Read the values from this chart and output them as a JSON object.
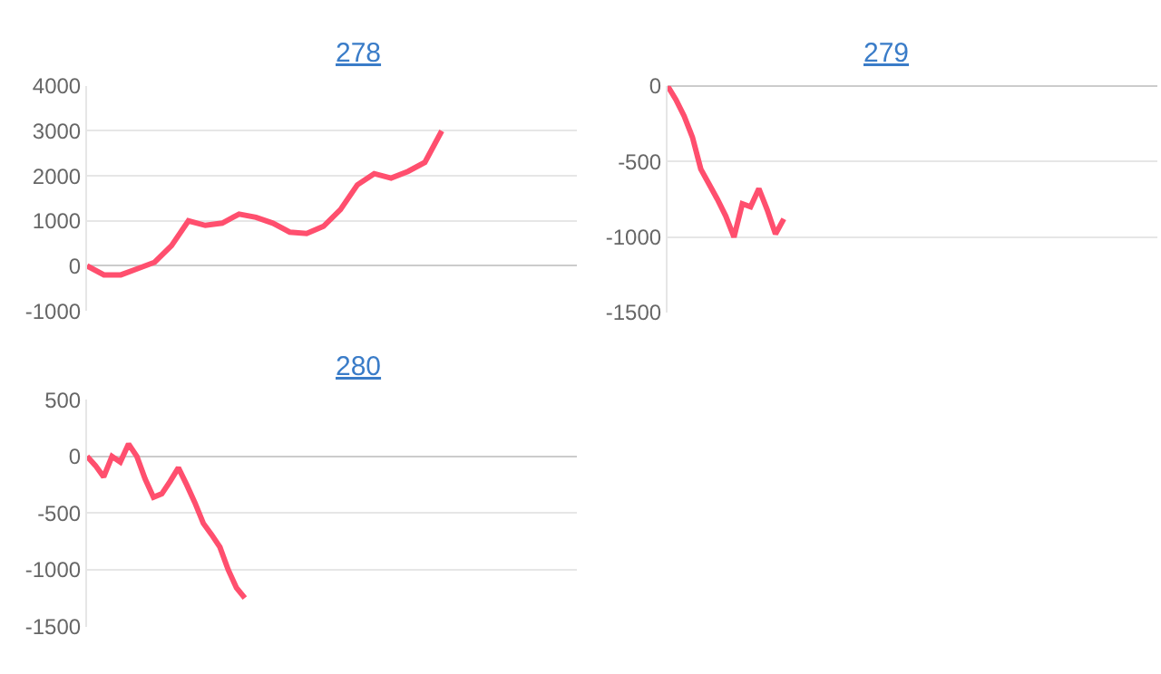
{
  "chart_data": [
    {
      "type": "line",
      "title": "278",
      "categories": [
        null,
        null,
        null,
        null,
        null,
        null,
        null,
        null,
        null,
        null,
        null,
        null,
        null,
        null,
        null,
        null,
        null,
        null,
        null,
        null,
        null,
        null,
        null,
        null,
        null,
        null,
        null,
        null,
        null,
        null
      ],
      "values": [
        0,
        -200,
        -200,
        -60,
        80,
        450,
        1000,
        900,
        950,
        1150,
        1080,
        950,
        750,
        720,
        880,
        1250,
        1800,
        2050,
        1950,
        2100,
        2300,
        3000,
        null,
        null,
        null,
        null,
        null,
        null,
        null,
        null
      ],
      "color": "#ff4f6e",
      "ylim": [
        -1000,
        4000
      ],
      "yticks": [
        -1000,
        0,
        1000,
        2000,
        3000,
        4000
      ],
      "grid": "y",
      "tick_labels": "y"
    },
    {
      "type": "line",
      "title": "279",
      "categories": [
        null,
        null,
        null,
        null,
        null,
        null,
        null,
        null,
        null,
        null,
        null,
        null,
        null,
        null,
        null,
        null,
        null,
        null,
        null,
        null,
        null,
        null,
        null,
        null,
        null,
        null,
        null,
        null,
        null,
        null,
        null,
        null,
        null,
        null,
        null,
        null,
        null,
        null,
        null,
        null,
        null,
        null,
        null,
        null,
        null,
        null,
        null,
        null,
        null,
        null,
        null,
        null,
        null,
        null,
        null,
        null,
        null,
        null,
        null,
        null
      ],
      "values": [
        0,
        -90,
        -200,
        -340,
        -550,
        -650,
        -750,
        -860,
        -1000,
        -780,
        -800,
        -680,
        -820,
        -980,
        -880,
        null,
        null,
        null,
        null,
        null,
        null,
        null,
        null,
        null,
        null,
        null,
        null,
        null,
        null,
        null,
        null,
        null,
        null,
        null,
        null,
        null,
        null,
        null,
        null,
        null,
        null,
        null,
        null,
        null,
        null,
        null,
        null,
        null,
        null,
        null,
        null,
        null,
        null,
        null,
        null,
        null,
        null,
        null,
        null,
        null
      ],
      "color": "#ff4f6e",
      "ylim": [
        -1500,
        0
      ],
      "yticks": [
        -1500,
        -1000,
        -500,
        0
      ],
      "grid": "y",
      "tick_labels": "y"
    },
    {
      "type": "line",
      "title": "280",
      "categories": [
        null,
        null,
        null,
        null,
        null,
        null,
        null,
        null,
        null,
        null,
        null,
        null,
        null,
        null,
        null,
        null,
        null,
        null,
        null,
        null,
        null,
        null,
        null,
        null,
        null,
        null,
        null,
        null,
        null,
        null,
        null,
        null,
        null,
        null,
        null,
        null,
        null,
        null,
        null,
        null,
        null,
        null,
        null,
        null,
        null,
        null,
        null,
        null,
        null,
        null,
        null,
        null,
        null,
        null,
        null,
        null,
        null,
        null,
        null,
        null
      ],
      "values": [
        0,
        -80,
        -180,
        0,
        -50,
        110,
        0,
        -200,
        -360,
        -330,
        -220,
        -100,
        -250,
        -410,
        -590,
        -690,
        -800,
        -1000,
        -1160,
        -1250,
        null,
        null,
        null,
        null,
        null,
        null,
        null,
        null,
        null,
        null,
        null,
        null,
        null,
        null,
        null,
        null,
        null,
        null,
        null,
        null,
        null,
        null,
        null,
        null,
        null,
        null,
        null,
        null,
        null,
        null,
        null,
        null,
        null,
        null,
        null,
        null,
        null,
        null,
        null,
        null
      ],
      "color": "#ff4f6e",
      "ylim": [
        -1500,
        500
      ],
      "yticks": [
        -1500,
        -1000,
        -500,
        0,
        500
      ],
      "grid": "y",
      "tick_labels": "y"
    }
  ]
}
